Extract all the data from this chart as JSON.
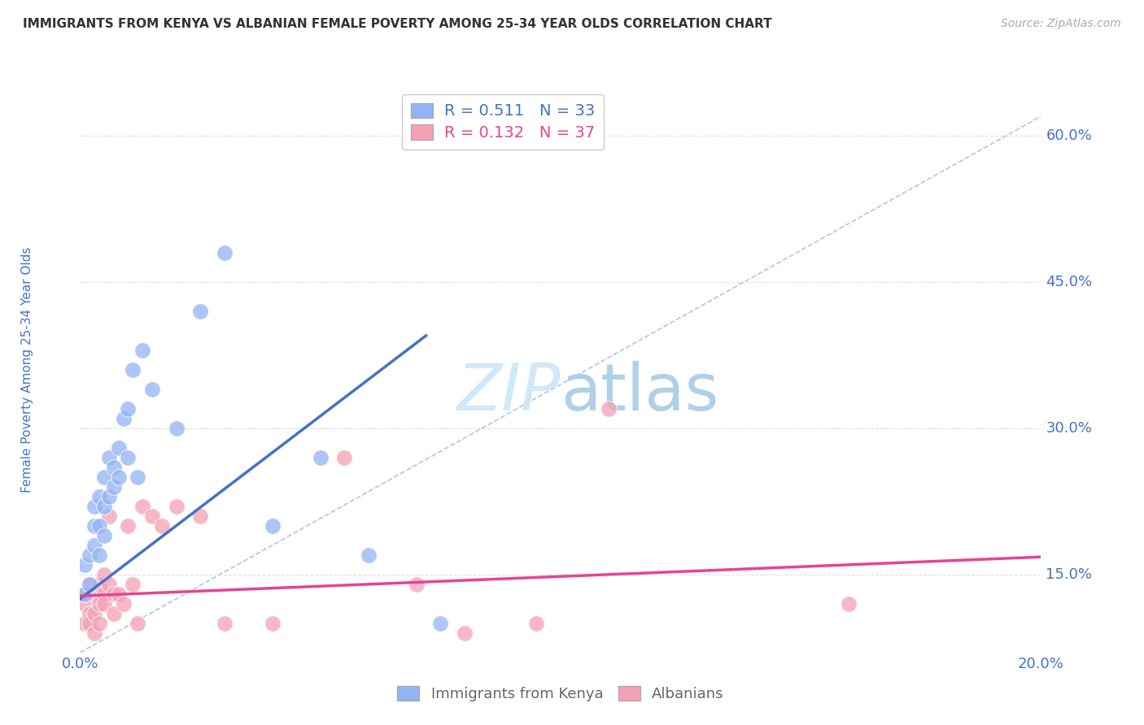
{
  "title": "IMMIGRANTS FROM KENYA VS ALBANIAN FEMALE POVERTY AMONG 25-34 YEAR OLDS CORRELATION CHART",
  "source": "Source: ZipAtlas.com",
  "ylabel": "Female Poverty Among 25-34 Year Olds",
  "ytick_labels": [
    "15.0%",
    "30.0%",
    "45.0%",
    "60.0%"
  ],
  "ytick_values": [
    0.15,
    0.3,
    0.45,
    0.6
  ],
  "xlim": [
    0.0,
    0.2
  ],
  "ylim": [
    0.07,
    0.65
  ],
  "legend_kenya_R": "0.511",
  "legend_kenya_N": "33",
  "legend_albanian_R": "0.132",
  "legend_albanian_N": "37",
  "kenya_color": "#92b4f4",
  "albanian_color": "#f4a0b5",
  "kenya_line_color": "#4472c4",
  "albanian_line_color": "#e84393",
  "ref_line_color": "#a8c8f0",
  "background_color": "#ffffff",
  "grid_color": "#e0e0e0",
  "title_color": "#333333",
  "axis_label_color": "#4472c4",
  "right_label_color": "#4472c4",
  "watermark_color": "#d0e8f8",
  "kenya_x": [
    0.001,
    0.001,
    0.002,
    0.002,
    0.003,
    0.003,
    0.003,
    0.004,
    0.004,
    0.004,
    0.005,
    0.005,
    0.005,
    0.006,
    0.006,
    0.007,
    0.007,
    0.008,
    0.008,
    0.009,
    0.01,
    0.01,
    0.011,
    0.012,
    0.013,
    0.015,
    0.02,
    0.025,
    0.03,
    0.04,
    0.05,
    0.06,
    0.075
  ],
  "kenya_y": [
    0.13,
    0.16,
    0.17,
    0.14,
    0.2,
    0.18,
    0.22,
    0.2,
    0.23,
    0.17,
    0.22,
    0.19,
    0.25,
    0.23,
    0.27,
    0.26,
    0.24,
    0.28,
    0.25,
    0.31,
    0.27,
    0.32,
    0.36,
    0.25,
    0.38,
    0.34,
    0.3,
    0.42,
    0.48,
    0.2,
    0.27,
    0.17,
    0.1
  ],
  "albanian_x": [
    0.001,
    0.001,
    0.001,
    0.002,
    0.002,
    0.002,
    0.003,
    0.003,
    0.003,
    0.004,
    0.004,
    0.004,
    0.005,
    0.005,
    0.005,
    0.006,
    0.006,
    0.007,
    0.007,
    0.008,
    0.009,
    0.01,
    0.011,
    0.012,
    0.013,
    0.015,
    0.017,
    0.02,
    0.025,
    0.03,
    0.04,
    0.055,
    0.07,
    0.08,
    0.095,
    0.11,
    0.16
  ],
  "albanian_y": [
    0.12,
    0.1,
    0.13,
    0.11,
    0.14,
    0.1,
    0.13,
    0.11,
    0.09,
    0.14,
    0.12,
    0.1,
    0.15,
    0.13,
    0.12,
    0.21,
    0.14,
    0.13,
    0.11,
    0.13,
    0.12,
    0.2,
    0.14,
    0.1,
    0.22,
    0.21,
    0.2,
    0.22,
    0.21,
    0.1,
    0.1,
    0.27,
    0.14,
    0.09,
    0.1,
    0.32,
    0.12
  ],
  "kenya_line_x0": 0.0,
  "kenya_line_y0": 0.125,
  "kenya_line_x1": 0.072,
  "kenya_line_y1": 0.395,
  "albanian_line_x0": 0.0,
  "albanian_line_y0": 0.128,
  "albanian_line_x1": 0.2,
  "albanian_line_y1": 0.168,
  "ref_line_x0": 0.0,
  "ref_line_y0": 0.07,
  "ref_line_x1": 0.2,
  "ref_line_y1": 0.62
}
